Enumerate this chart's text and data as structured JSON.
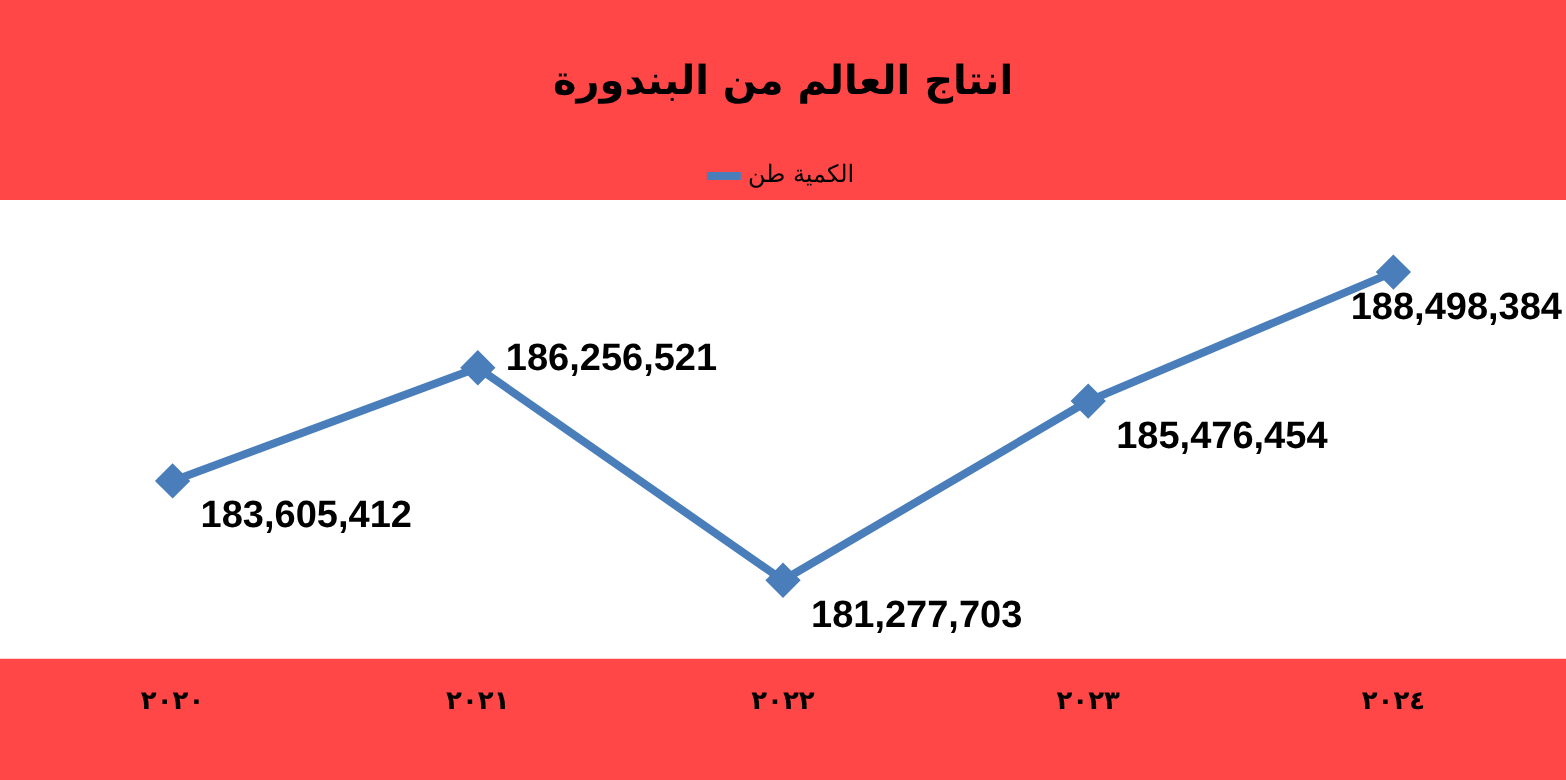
{
  "chart_data": {
    "type": "line",
    "title": "انتاج العالم من البندورة",
    "categories": [
      "٢٠٢٠",
      "٢٠٢١",
      "٢٠٢٢",
      "٢٠٢٣",
      "٢٠٢٤"
    ],
    "series": [
      {
        "name": "الكمية طن",
        "color": "#4a7ebb",
        "values": [
          183605412,
          186256521,
          181277703,
          185476454,
          188498384
        ],
        "value_labels": [
          "183,605,412",
          "186,256,521",
          "181,277,703",
          "185,476,454",
          "188,498,384"
        ]
      }
    ],
    "legend": "top",
    "marker": "diamond",
    "line_style": "solid",
    "grid": false
  }
}
